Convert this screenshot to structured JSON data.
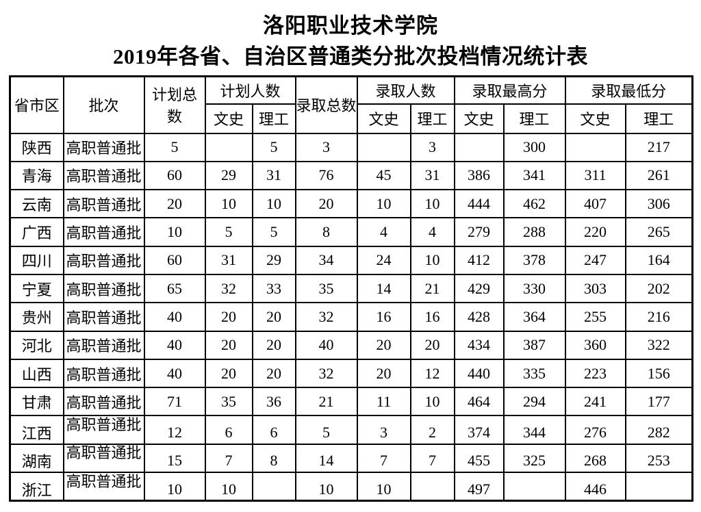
{
  "title": "洛阳职业技术学院",
  "subtitle": "2019年各省、自治区普通类分批次投档情况统计表",
  "table": {
    "headers": {
      "province": "省市区",
      "batch": "批次",
      "plan_total": "计划总数",
      "plan_count": "计划人数",
      "admit_total": "录取总数",
      "admit_count": "录取人数",
      "admit_max": "录取最高分",
      "admit_min": "录取最低分",
      "wenshi": "文史",
      "ligong": "理工"
    },
    "rows": [
      {
        "province": "陕西",
        "batch": "高职普通批",
        "plan_total": "5",
        "plan_ws": "",
        "plan_lg": "5",
        "admit_total": "3",
        "admit_ws": "",
        "admit_lg": "3",
        "max_ws": "",
        "max_lg": "300",
        "min_ws": "",
        "min_lg": "217"
      },
      {
        "province": "青海",
        "batch": "高职普通批",
        "plan_total": "60",
        "plan_ws": "29",
        "plan_lg": "31",
        "admit_total": "76",
        "admit_ws": "45",
        "admit_lg": "31",
        "max_ws": "386",
        "max_lg": "341",
        "min_ws": "311",
        "min_lg": "261"
      },
      {
        "province": "云南",
        "batch": "高职普通批",
        "plan_total": "20",
        "plan_ws": "10",
        "plan_lg": "10",
        "admit_total": "20",
        "admit_ws": "10",
        "admit_lg": "10",
        "max_ws": "444",
        "max_lg": "462",
        "min_ws": "407",
        "min_lg": "306"
      },
      {
        "province": "广西",
        "batch": "高职普通批",
        "plan_total": "10",
        "plan_ws": "5",
        "plan_lg": "5",
        "admit_total": "8",
        "admit_ws": "4",
        "admit_lg": "4",
        "max_ws": "279",
        "max_lg": "288",
        "min_ws": "220",
        "min_lg": "265"
      },
      {
        "province": "四川",
        "batch": "高职普通批",
        "plan_total": "60",
        "plan_ws": "31",
        "plan_lg": "29",
        "admit_total": "34",
        "admit_ws": "24",
        "admit_lg": "10",
        "max_ws": "412",
        "max_lg": "378",
        "min_ws": "247",
        "min_lg": "164"
      },
      {
        "province": "宁夏",
        "batch": "高职普通批",
        "plan_total": "65",
        "plan_ws": "32",
        "plan_lg": "33",
        "admit_total": "35",
        "admit_ws": "14",
        "admit_lg": "21",
        "max_ws": "429",
        "max_lg": "330",
        "min_ws": "303",
        "min_lg": "202"
      },
      {
        "province": "贵州",
        "batch": "高职普通批",
        "plan_total": "40",
        "plan_ws": "20",
        "plan_lg": "20",
        "admit_total": "32",
        "admit_ws": "16",
        "admit_lg": "16",
        "max_ws": "428",
        "max_lg": "364",
        "min_ws": "255",
        "min_lg": "216"
      },
      {
        "province": "河北",
        "batch": "高职普通批",
        "plan_total": "40",
        "plan_ws": "20",
        "plan_lg": "20",
        "admit_total": "40",
        "admit_ws": "20",
        "admit_lg": "20",
        "max_ws": "434",
        "max_lg": "387",
        "min_ws": "360",
        "min_lg": "322"
      },
      {
        "province": "山西",
        "batch": "高职普通批",
        "plan_total": "40",
        "plan_ws": "20",
        "plan_lg": "20",
        "admit_total": "32",
        "admit_ws": "20",
        "admit_lg": "12",
        "max_ws": "440",
        "max_lg": "335",
        "min_ws": "223",
        "min_lg": "156"
      },
      {
        "province": "甘肃",
        "batch": "高职普通批",
        "plan_total": "71",
        "plan_ws": "35",
        "plan_lg": "36",
        "admit_total": "21",
        "admit_ws": "11",
        "admit_lg": "10",
        "max_ws": "464",
        "max_lg": "294",
        "min_ws": "241",
        "min_lg": "177"
      },
      {
        "province": "江西",
        "batch": "高职普通批",
        "plan_total": "12",
        "plan_ws": "6",
        "plan_lg": "6",
        "admit_total": "5",
        "admit_ws": "3",
        "admit_lg": "2",
        "max_ws": "374",
        "max_lg": "344",
        "min_ws": "276",
        "min_lg": "282"
      },
      {
        "province": "湖南",
        "batch": "高职普通批",
        "plan_total": "15",
        "plan_ws": "7",
        "plan_lg": "8",
        "admit_total": "14",
        "admit_ws": "7",
        "admit_lg": "7",
        "max_ws": "455",
        "max_lg": "325",
        "min_ws": "268",
        "min_lg": "253"
      },
      {
        "province": "浙江",
        "batch": "高职普通批",
        "plan_total": "10",
        "plan_ws": "10",
        "plan_lg": "",
        "admit_total": "10",
        "admit_ws": "10",
        "admit_lg": "",
        "max_ws": "497",
        "max_lg": "",
        "min_ws": "446",
        "min_lg": ""
      }
    ]
  }
}
